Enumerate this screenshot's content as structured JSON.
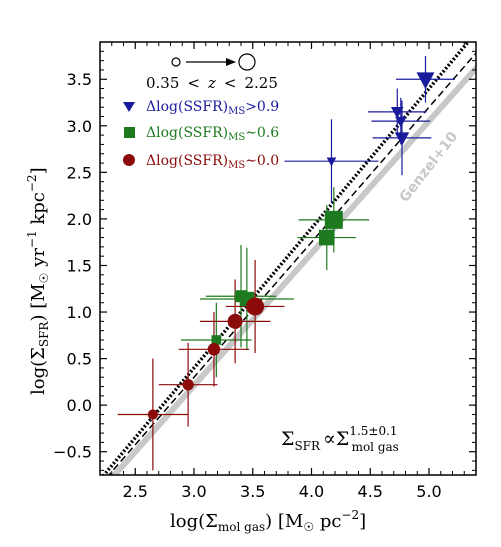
{
  "chart_data": {
    "type": "scatter",
    "xlabel": "log(Σ_mol gas) [M☉ pc⁻²]",
    "ylabel": "log(Σ_SFR) [M☉ yr⁻¹ kpc⁻²]",
    "xlim": [
      2.2,
      5.4
    ],
    "ylim": [
      -0.75,
      3.9
    ],
    "x_ticks": [
      "2.5",
      "3.0",
      "3.5",
      "4.0",
      "4.5",
      "5.0"
    ],
    "y_ticks": [
      "−0.5",
      "0.0",
      "0.5",
      "1.0",
      "1.5",
      "2.0",
      "2.5",
      "3.0",
      "3.5"
    ],
    "redshift_label": "0.35 < z < 2.25",
    "relation_label": "Σ_SFR ∝ Σ_mol gas^(1.5±0.1)",
    "reference_label": "Genzel+10",
    "lines": {
      "fit_dotted": {
        "slope": 1.5,
        "intercept": -4.1,
        "color": "#000000"
      },
      "dashed": {
        "slope": 1.45,
        "intercept": -4.05,
        "color": "#000000"
      },
      "genzel10": {
        "slope": 1.42,
        "intercept": -4.05,
        "color": "#c8c8c8"
      }
    },
    "series": [
      {
        "name": "Δlog(SSFR)_MS > 0.9",
        "color": "#1a1a9c",
        "marker": "triangle-down",
        "points": [
          {
            "x": 4.17,
            "y": 2.62,
            "xerr": 0.4,
            "yerr": 0.45,
            "size": 0.3
          },
          {
            "x": 4.73,
            "y": 3.15,
            "xerr": 0.25,
            "yerr": 0.25,
            "size": 0.55
          },
          {
            "x": 4.76,
            "y": 3.05,
            "xerr": 0.25,
            "yerr": 0.25,
            "size": 0.45
          },
          {
            "x": 4.77,
            "y": 2.87,
            "xerr": 0.25,
            "yerr": 0.4,
            "size": 0.7
          },
          {
            "x": 4.97,
            "y": 3.5,
            "xerr": 0.25,
            "yerr": 0.25,
            "size": 1.0
          }
        ]
      },
      {
        "name": "Δlog(SSFR)_MS ~ 0.6",
        "color": "#1e7a1e",
        "marker": "square",
        "points": [
          {
            "x": 3.19,
            "y": 0.7,
            "xerr": 0.3,
            "yerr": 0.4,
            "size": 0.3
          },
          {
            "x": 3.4,
            "y": 1.17,
            "xerr": 0.3,
            "yerr": 0.55,
            "size": 0.5
          },
          {
            "x": 3.45,
            "y": 1.14,
            "xerr": 0.4,
            "yerr": 0.55,
            "size": 0.7
          },
          {
            "x": 4.13,
            "y": 1.8,
            "xerr": 0.25,
            "yerr": 0.35,
            "size": 0.8
          },
          {
            "x": 4.19,
            "y": 1.99,
            "xerr": 0.3,
            "yerr": 0.35,
            "size": 1.0
          }
        ]
      },
      {
        "name": "Δlog(SSFR)_MS ~ 0.0",
        "color": "#8b0a0a",
        "marker": "circle",
        "points": [
          {
            "x": 2.65,
            "y": -0.1,
            "xerr": 0.3,
            "yerr": 0.6,
            "size": 0.35
          },
          {
            "x": 2.95,
            "y": 0.22,
            "xerr": 0.25,
            "yerr": 0.45,
            "size": 0.45
          },
          {
            "x": 3.17,
            "y": 0.6,
            "xerr": 0.3,
            "yerr": 0.4,
            "size": 0.55
          },
          {
            "x": 3.35,
            "y": 0.9,
            "xerr": 0.3,
            "yerr": 0.45,
            "size": 0.75
          },
          {
            "x": 3.52,
            "y": 1.06,
            "xerr": 0.25,
            "yerr": 0.5,
            "size": 1.0
          }
        ]
      }
    ]
  }
}
